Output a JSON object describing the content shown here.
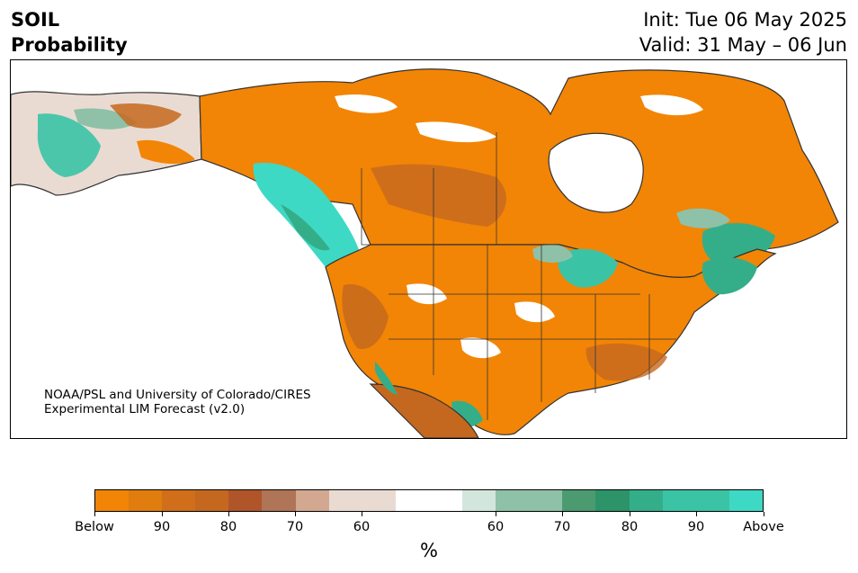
{
  "title": {
    "line1": "SOIL",
    "line2": "Probability"
  },
  "dates": {
    "init": "Init: Tue 06 May 2025",
    "valid": "Valid: 31 May – 06 Jun"
  },
  "credit": {
    "line1": "NOAA/PSL and University of Colorado/CIRES",
    "line2": "Experimental LIM Forecast (v2.0)"
  },
  "legend": {
    "units": "%",
    "colors": [
      "#f28505",
      "#e07d0e",
      "#d06e1a",
      "#c5681f",
      "#b0552a",
      "#b07456",
      "#d3a891",
      "#eadbd2",
      "#ffffff",
      "#d2e6dc",
      "#8fc1a8",
      "#4c9b70",
      "#2c9468",
      "#34ae89",
      "#3bc3a6",
      "#3dd9c4"
    ],
    "ticks": [
      "Below",
      "90",
      "80",
      "70",
      "60",
      "60",
      "70",
      "80",
      "90",
      "Above"
    ]
  },
  "map_colors": {
    "below": "#f28505",
    "below_mid": "#c5681f",
    "below_light": "#eadbd2",
    "above": "#3dd9c4",
    "above_mid": "#34ae89",
    "above_light": "#8fc1a8",
    "land_line": "#333333"
  }
}
